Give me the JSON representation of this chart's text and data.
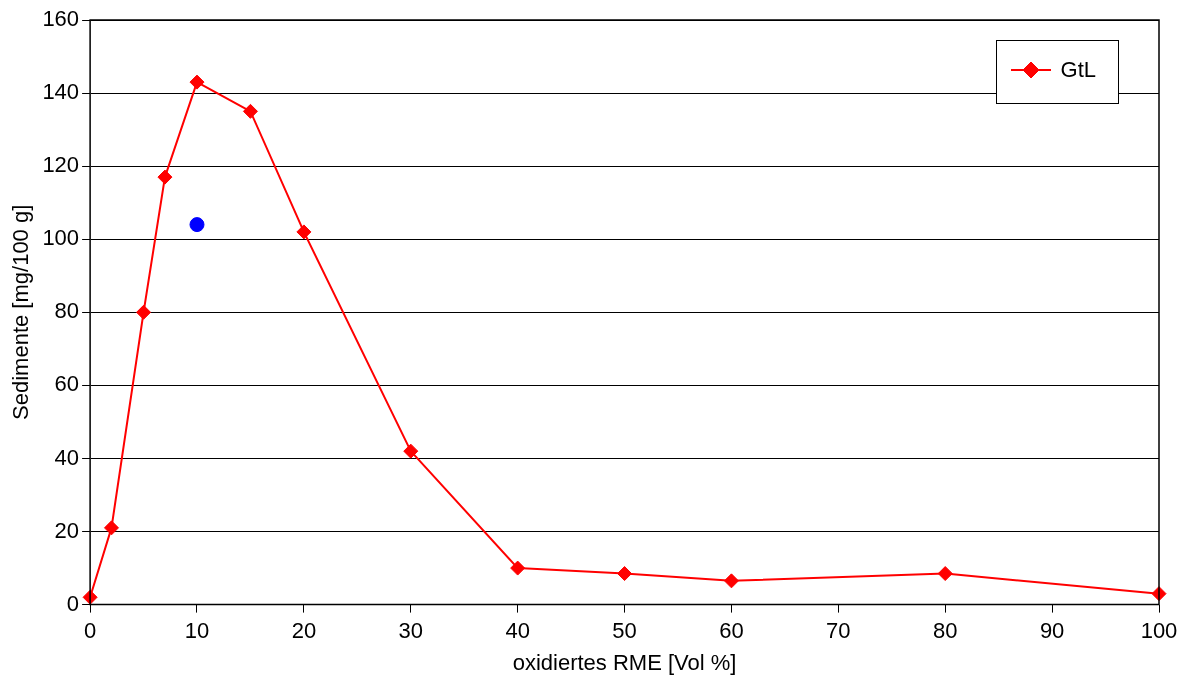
{
  "chart_data": {
    "type": "line",
    "xlabel": "oxidiertes RME [Vol %]",
    "ylabel": "Sedimente [mg/100 g]",
    "xlim": [
      0,
      100
    ],
    "xticks": [
      0,
      10,
      20,
      30,
      40,
      50,
      60,
      70,
      80,
      90,
      100
    ],
    "ylim": [
      0,
      160
    ],
    "yticks": [
      0,
      20,
      40,
      60,
      80,
      100,
      120,
      140,
      160
    ],
    "grid": "y",
    "legend": "top right",
    "series": [
      {
        "name": "GtL",
        "type": "line",
        "marker": "diamond",
        "color": "#ff0000",
        "x": [
          0,
          2,
          5,
          7,
          10,
          15,
          20,
          30,
          40,
          50,
          60,
          80,
          100
        ],
        "values": [
          2,
          21,
          80,
          117,
          143,
          135,
          102,
          42,
          10,
          8.5,
          6.5,
          8.5,
          3
        ]
      },
      {
        "type": "scatter",
        "marker": "circle",
        "color": "#0000ff",
        "x": [
          10
        ],
        "values": [
          104
        ]
      }
    ]
  }
}
